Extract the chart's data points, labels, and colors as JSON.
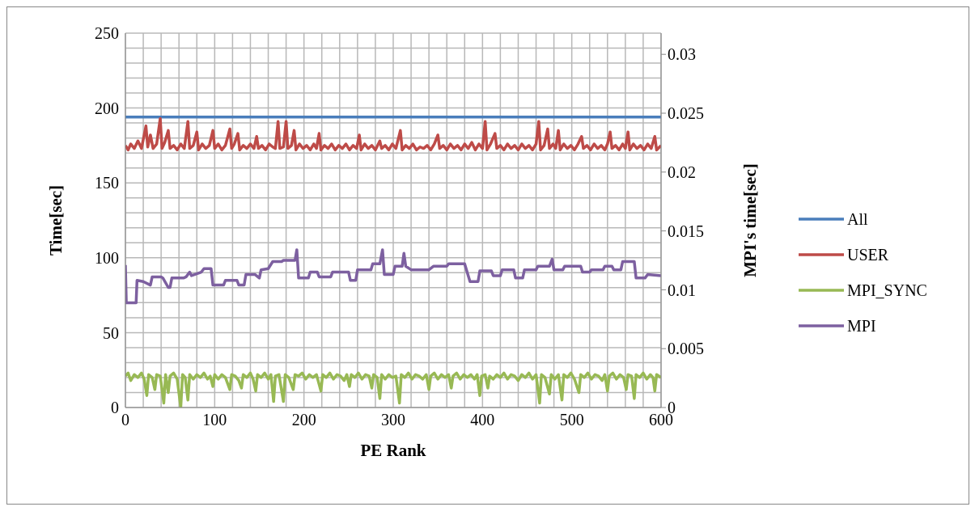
{
  "chart_data": {
    "type": "line",
    "xlabel": "PE Rank",
    "ylabel": "Time[sec]",
    "y2label": "MPI's time[sec]",
    "xlim": [
      0,
      600
    ],
    "xticks": [
      0,
      {
        "value": 20,
        "label": null
      },
      {
        "value": 40,
        "label": null
      },
      {
        "value": 60,
        "label": null
      },
      {
        "value": 80,
        "label": null
      },
      100,
      {
        "value": 120,
        "label": null
      },
      {
        "value": 140,
        "label": null
      },
      {
        "value": 160,
        "label": null
      },
      {
        "value": 180,
        "label": null
      },
      200,
      {
        "value": 220,
        "label": null
      },
      {
        "value": 240,
        "label": null
      },
      {
        "value": 260,
        "label": null
      },
      {
        "value": 280,
        "label": null
      },
      300,
      {
        "value": 320,
        "label": null
      },
      {
        "value": 340,
        "label": null
      },
      {
        "value": 360,
        "label": null
      },
      {
        "value": 380,
        "label": null
      },
      400,
      {
        "value": 420,
        "label": null
      },
      {
        "value": 440,
        "label": null
      },
      {
        "value": 460,
        "label": null
      },
      {
        "value": 480,
        "label": null
      },
      500,
      {
        "value": 520,
        "label": null
      },
      {
        "value": 540,
        "label": null
      },
      {
        "value": 560,
        "label": null
      },
      {
        "value": 580,
        "label": null
      },
      600
    ],
    "ylim": [
      0,
      250
    ],
    "yticks": [
      0,
      {
        "value": 10,
        "label": null
      },
      {
        "value": 20,
        "label": null
      },
      {
        "value": 30,
        "label": null
      },
      {
        "value": 40,
        "label": null
      },
      50,
      {
        "value": 60,
        "label": null
      },
      {
        "value": 70,
        "label": null
      },
      {
        "value": 80,
        "label": null
      },
      {
        "value": 90,
        "label": null
      },
      100,
      {
        "value": 110,
        "label": null
      },
      {
        "value": 120,
        "label": null
      },
      {
        "value": 130,
        "label": null
      },
      {
        "value": 140,
        "label": null
      },
      150,
      {
        "value": 160,
        "label": null
      },
      {
        "value": 170,
        "label": null
      },
      {
        "value": 180,
        "label": null
      },
      {
        "value": 190,
        "label": null
      },
      200,
      {
        "value": 210,
        "label": null
      },
      {
        "value": 220,
        "label": null
      },
      {
        "value": 230,
        "label": null
      },
      {
        "value": 240,
        "label": null
      },
      250
    ],
    "y2lim": [
      0,
      0.0318
    ],
    "y2ticks": [
      0,
      0.005,
      0.01,
      0.015,
      0.02,
      0.025,
      0.03
    ],
    "grid": true,
    "legend": "right",
    "marker": "none",
    "line_style": "solid",
    "series": [
      {
        "name": "All",
        "color": "#4a7ebb",
        "x": [
          0,
          600
        ],
        "values": [
          194,
          194
        ]
      },
      {
        "name": "USER",
        "color": "#be4b48",
        "x": [
          0,
          3,
          6,
          10,
          14,
          18,
          23,
          25,
          28,
          31,
          35,
          39,
          41,
          44,
          48,
          50,
          54,
          58,
          62,
          66,
          70,
          72,
          76,
          80,
          82,
          86,
          90,
          94,
          98,
          100,
          104,
          108,
          112,
          117,
          119,
          122,
          126,
          128,
          132,
          136,
          140,
          144,
          147,
          149,
          153,
          157,
          161,
          165,
          168,
          171,
          173,
          177,
          180,
          182,
          186,
          189,
          191,
          195,
          199,
          203,
          207,
          211,
          214,
          217,
          219,
          223,
          227,
          231,
          235,
          239,
          243,
          247,
          251,
          255,
          259,
          262,
          264,
          268,
          272,
          276,
          280,
          285,
          287,
          291,
          295,
          299,
          303,
          308,
          310,
          314,
          318,
          322,
          326,
          330,
          334,
          338,
          342,
          346,
          350,
          352,
          356,
          360,
          364,
          368,
          372,
          376,
          380,
          384,
          388,
          392,
          396,
          400,
          403,
          405,
          409,
          414,
          416,
          420,
          424,
          428,
          432,
          436,
          440,
          444,
          448,
          452,
          456,
          460,
          463,
          465,
          469,
          473,
          475,
          479,
          482,
          485,
          487,
          491,
          495,
          499,
          503,
          507,
          511,
          513,
          517,
          521,
          525,
          529,
          533,
          537,
          540,
          543,
          545,
          549,
          553,
          557,
          560,
          563,
          565,
          569,
          573,
          577,
          581,
          585,
          589,
          593,
          595,
          600
        ],
        "values": [
          175,
          172,
          176,
          173,
          178,
          173,
          188,
          174,
          182,
          173,
          176,
          193,
          173,
          177,
          185,
          173,
          175,
          172,
          176,
          173,
          191,
          173,
          175,
          184,
          172,
          176,
          173,
          175,
          185,
          173,
          176,
          172,
          175,
          186,
          173,
          176,
          183,
          172,
          175,
          173,
          176,
          173,
          181,
          173,
          175,
          172,
          176,
          174,
          173,
          191,
          173,
          174,
          191,
          173,
          175,
          185,
          172,
          176,
          173,
          175,
          172,
          176,
          173,
          183,
          172,
          175,
          173,
          176,
          172,
          175,
          173,
          176,
          172,
          175,
          173,
          182,
          172,
          176,
          173,
          175,
          172,
          178,
          173,
          175,
          172,
          176,
          173,
          185,
          172,
          175,
          173,
          176,
          172,
          174,
          173,
          175,
          172,
          176,
          182,
          173,
          175,
          172,
          176,
          173,
          175,
          172,
          176,
          173,
          177,
          172,
          176,
          173,
          191,
          172,
          176,
          183,
          173,
          175,
          172,
          176,
          173,
          175,
          172,
          176,
          173,
          175,
          172,
          176,
          191,
          172,
          175,
          186,
          173,
          176,
          173,
          185,
          172,
          176,
          173,
          175,
          172,
          176,
          181,
          173,
          175,
          172,
          176,
          173,
          175,
          172,
          176,
          184,
          173,
          175,
          172,
          176,
          173,
          184,
          172,
          176,
          173,
          175,
          172,
          176,
          173,
          181,
          172,
          175
        ]
      },
      {
        "name": "MPI_SYNC",
        "color": "#98b954",
        "x": [
          0,
          3,
          6,
          10,
          14,
          18,
          21,
          24,
          26,
          30,
          33,
          35,
          39,
          43,
          45,
          48,
          50,
          54,
          58,
          62,
          64,
          67,
          70,
          72,
          76,
          80,
          84,
          88,
          92,
          95,
          98,
          100,
          104,
          108,
          112,
          117,
          119,
          123,
          127,
          130,
          132,
          136,
          140,
          143,
          146,
          148,
          152,
          156,
          160,
          163,
          166,
          168,
          172,
          177,
          179,
          183,
          188,
          190,
          194,
          198,
          202,
          206,
          210,
          214,
          219,
          221,
          225,
          229,
          233,
          237,
          241,
          245,
          248,
          251,
          253,
          257,
          261,
          265,
          269,
          273,
          276,
          278,
          282,
          285,
          287,
          291,
          295,
          299,
          303,
          307,
          309,
          313,
          317,
          321,
          325,
          329,
          333,
          337,
          340,
          342,
          346,
          350,
          354,
          358,
          362,
          365,
          367,
          371,
          375,
          379,
          383,
          387,
          391,
          394,
          397,
          399,
          403,
          406,
          408,
          412,
          416,
          420,
          424,
          428,
          432,
          436,
          440,
          444,
          448,
          452,
          456,
          460,
          464,
          466,
          470,
          475,
          477,
          481,
          485,
          489,
          491,
          495,
          499,
          503,
          508,
          510,
          514,
          518,
          522,
          526,
          530,
          534,
          537,
          540,
          542,
          546,
          550,
          554,
          558,
          561,
          563,
          567,
          570,
          572,
          576,
          580,
          584,
          588,
          591,
          593,
          595,
          600
        ],
        "values": [
          21,
          23,
          18,
          22,
          20,
          23,
          19,
          8,
          22,
          20,
          12,
          22,
          21,
          3,
          22,
          10,
          21,
          23,
          19,
          0,
          22,
          20,
          5,
          22,
          19,
          22,
          20,
          23,
          19,
          21,
          14,
          22,
          19,
          22,
          20,
          12,
          22,
          21,
          18,
          13,
          22,
          20,
          23,
          19,
          11,
          22,
          20,
          23,
          19,
          22,
          4,
          21,
          22,
          4,
          22,
          20,
          12,
          22,
          21,
          23,
          19,
          22,
          20,
          22,
          11,
          22,
          20,
          23,
          19,
          22,
          21,
          18,
          22,
          14,
          22,
          20,
          23,
          19,
          22,
          21,
          13,
          22,
          20,
          6,
          22,
          19,
          22,
          20,
          21,
          3,
          22,
          20,
          23,
          19,
          22,
          21,
          19,
          22,
          12,
          21,
          23,
          19,
          22,
          20,
          22,
          13,
          21,
          23,
          19,
          22,
          20,
          22,
          19,
          22,
          8,
          21,
          22,
          13,
          21,
          19,
          22,
          20,
          23,
          19,
          22,
          21,
          18,
          22,
          20,
          23,
          19,
          22,
          3,
          22,
          20,
          9,
          22,
          19,
          22,
          5,
          22,
          20,
          23,
          19,
          10,
          22,
          20,
          23,
          19,
          22,
          21,
          18,
          22,
          11,
          21,
          23,
          19,
          22,
          20,
          12,
          22,
          21,
          6,
          22,
          20,
          23,
          19,
          22,
          20,
          11,
          22,
          20
        ]
      },
      {
        "name": "MPI",
        "color": "#7d60a0",
        "axis": "y2",
        "x": [
          0,
          1,
          12,
          13,
          20,
          28,
          30,
          40,
          42,
          48,
          50,
          52,
          65,
          68,
          72,
          74,
          85,
          88,
          96,
          98,
          110,
          112,
          125,
          127,
          133,
          135,
          145,
          150,
          152,
          160,
          165,
          175,
          177,
          190,
          192,
          194,
          205,
          207,
          215,
          217,
          230,
          232,
          250,
          252,
          258,
          260,
          275,
          277,
          285,
          288,
          290,
          300,
          302,
          310,
          312,
          314,
          320,
          335,
          340,
          345,
          360,
          362,
          380,
          386,
          395,
          397,
          410,
          412,
          420,
          422,
          435,
          437,
          445,
          447,
          460,
          462,
          475,
          478,
          480,
          490,
          492,
          510,
          512,
          520,
          522,
          535,
          537,
          545,
          547,
          555,
          557,
          570,
          572,
          582,
          585,
          600
        ],
        "values": [
          0.0121,
          0.0089,
          0.0089,
          0.0108,
          0.0107,
          0.0104,
          0.0111,
          0.0111,
          0.011,
          0.0102,
          0.0102,
          0.011,
          0.011,
          0.0111,
          0.0115,
          0.0112,
          0.0115,
          0.0118,
          0.0118,
          0.0104,
          0.0104,
          0.0108,
          0.0108,
          0.0104,
          0.0104,
          0.0113,
          0.0113,
          0.011,
          0.0117,
          0.0118,
          0.0124,
          0.0124,
          0.0125,
          0.0125,
          0.0134,
          0.011,
          0.011,
          0.0115,
          0.0115,
          0.0111,
          0.0111,
          0.0115,
          0.0115,
          0.0108,
          0.0108,
          0.0117,
          0.0117,
          0.0122,
          0.0122,
          0.0134,
          0.0113,
          0.0113,
          0.012,
          0.012,
          0.0131,
          0.012,
          0.0117,
          0.0117,
          0.0117,
          0.012,
          0.012,
          0.0122,
          0.0122,
          0.0107,
          0.0107,
          0.0116,
          0.0116,
          0.0112,
          0.0112,
          0.0117,
          0.0117,
          0.011,
          0.011,
          0.0117,
          0.0117,
          0.012,
          0.012,
          0.0126,
          0.0117,
          0.0117,
          0.012,
          0.012,
          0.0115,
          0.0115,
          0.0117,
          0.0117,
          0.012,
          0.012,
          0.0117,
          0.0117,
          0.0124,
          0.0124,
          0.011,
          0.011,
          0.0113,
          0.0112
        ]
      }
    ]
  }
}
